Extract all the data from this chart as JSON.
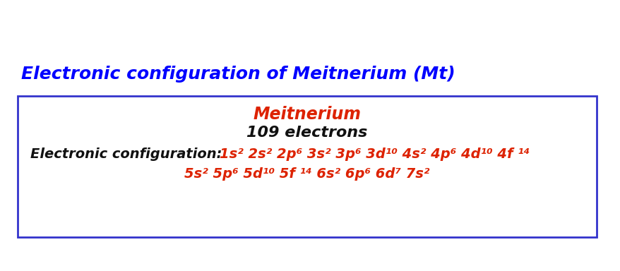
{
  "title": "Electronic configuration of Meitnerium (Mt)",
  "title_color": "#0000FF",
  "title_fontsize": 18,
  "box_edgecolor": "#3333CC",
  "element_name": "Meitnerium",
  "element_name_color": "#DD2200",
  "element_name_fontsize": 17,
  "electrons_text": "109 electrons",
  "electrons_color": "#111111",
  "electrons_fontsize": 16,
  "config_label": "Electronic configuration: ",
  "config_label_color": "#111111",
  "config_label_fontsize": 14,
  "config_line1": "1s² 2s² 2p⁶ 3s² 3p⁶ 3d¹⁰ 4s² 4p⁶ 4d¹⁰ 4f ¹⁴",
  "config_line2": "5s² 5p⁶ 5d¹⁰ 5f ¹⁴ 6s² 6p⁶ 6d⁷ 7s²",
  "config_color": "#DD2200",
  "config_fontsize": 14,
  "background_color": "#FFFFFF"
}
